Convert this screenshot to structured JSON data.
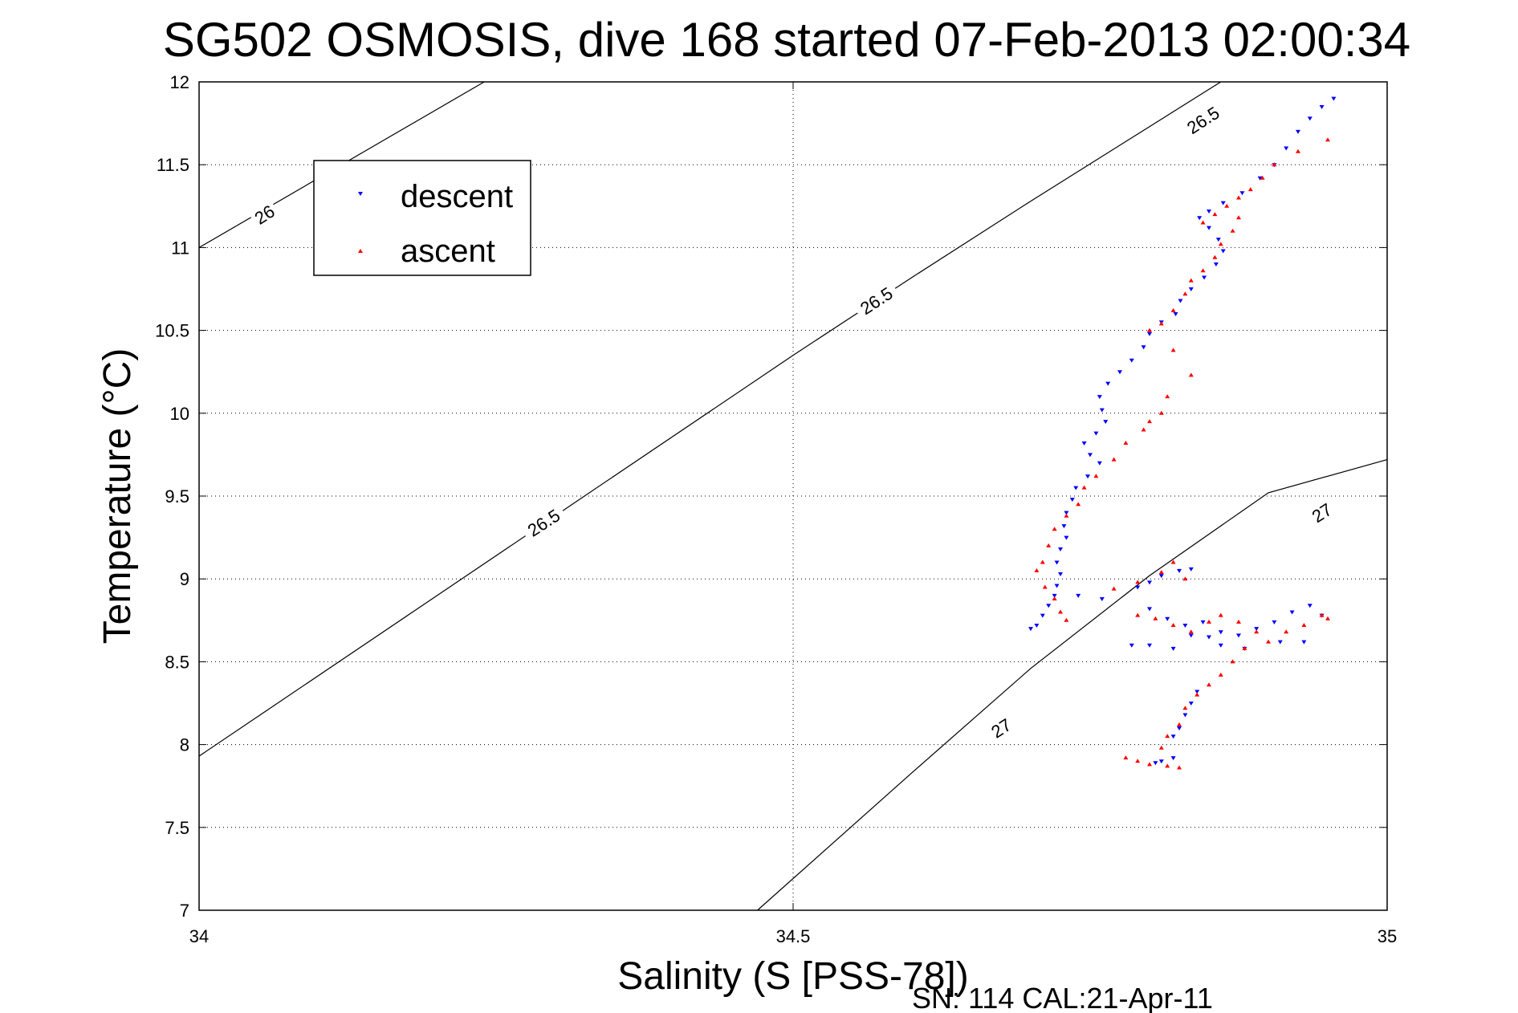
{
  "chart_data": {
    "type": "scatter",
    "title": "SG502 OSMOSIS, dive 168 started 07-Feb-2013 02:00:34",
    "xlabel": "Salinity (S [PSS-78])",
    "ylabel": "Temperature (°C)",
    "xlim": [
      34,
      35
    ],
    "ylim": [
      7,
      12
    ],
    "xticks": [
      "34",
      "34.5",
      "35"
    ],
    "yticks": [
      "7",
      "7.5",
      "8",
      "8.5",
      "9",
      "9.5",
      "10",
      "10.5",
      "11",
      "11.5",
      "12"
    ],
    "grid": true,
    "legend_position": "top-left",
    "footer": "SN: 114  CAL:21-Apr-11",
    "series": [
      {
        "name": "descent",
        "color": "#0000ff",
        "marker": "triangle-down",
        "points": [
          [
            34.955,
            11.9
          ],
          [
            34.945,
            11.85
          ],
          [
            34.935,
            11.78
          ],
          [
            34.925,
            11.7
          ],
          [
            34.915,
            11.6
          ],
          [
            34.905,
            11.5
          ],
          [
            34.893,
            11.42
          ],
          [
            34.878,
            11.33
          ],
          [
            34.862,
            11.27
          ],
          [
            34.85,
            11.22
          ],
          [
            34.842,
            11.18
          ],
          [
            34.85,
            11.12
          ],
          [
            34.858,
            11.05
          ],
          [
            34.862,
            10.98
          ],
          [
            34.856,
            10.9
          ],
          [
            34.846,
            10.82
          ],
          [
            34.835,
            10.75
          ],
          [
            34.826,
            10.68
          ],
          [
            34.822,
            10.6
          ],
          [
            34.81,
            10.55
          ],
          [
            34.8,
            10.48
          ],
          [
            34.795,
            10.4
          ],
          [
            34.785,
            10.32
          ],
          [
            34.775,
            10.25
          ],
          [
            34.765,
            10.18
          ],
          [
            34.758,
            10.1
          ],
          [
            34.76,
            10.02
          ],
          [
            34.763,
            9.95
          ],
          [
            34.755,
            9.88
          ],
          [
            34.745,
            9.82
          ],
          [
            34.75,
            9.75
          ],
          [
            34.758,
            9.7
          ],
          [
            34.748,
            9.62
          ],
          [
            34.738,
            9.55
          ],
          [
            34.735,
            9.48
          ],
          [
            34.73,
            9.4
          ],
          [
            34.728,
            9.32
          ],
          [
            34.73,
            9.25
          ],
          [
            34.725,
            9.18
          ],
          [
            34.722,
            9.1
          ],
          [
            34.725,
            9.03
          ],
          [
            34.722,
            8.96
          ],
          [
            34.72,
            8.9
          ],
          [
            34.715,
            8.84
          ],
          [
            34.71,
            8.78
          ],
          [
            34.705,
            8.72
          ],
          [
            34.7,
            8.7
          ],
          [
            34.74,
            8.9
          ],
          [
            34.76,
            8.88
          ],
          [
            34.79,
            8.95
          ],
          [
            34.8,
            8.98
          ],
          [
            34.81,
            9.02
          ],
          [
            34.825,
            9.05
          ],
          [
            34.835,
            9.06
          ],
          [
            34.8,
            8.82
          ],
          [
            34.815,
            8.76
          ],
          [
            34.83,
            8.72
          ],
          [
            34.845,
            8.74
          ],
          [
            34.86,
            8.68
          ],
          [
            34.875,
            8.66
          ],
          [
            34.89,
            8.7
          ],
          [
            34.905,
            8.74
          ],
          [
            34.92,
            8.8
          ],
          [
            34.935,
            8.84
          ],
          [
            34.945,
            8.78
          ],
          [
            34.93,
            8.62
          ],
          [
            34.91,
            8.62
          ],
          [
            34.88,
            8.58
          ],
          [
            34.86,
            8.6
          ],
          [
            34.85,
            8.65
          ],
          [
            34.835,
            8.66
          ],
          [
            34.82,
            8.58
          ],
          [
            34.8,
            8.6
          ],
          [
            34.785,
            8.6
          ],
          [
            34.84,
            8.32
          ],
          [
            34.835,
            8.25
          ],
          [
            34.83,
            8.18
          ],
          [
            34.825,
            8.1
          ],
          [
            34.82,
            8.05
          ],
          [
            34.82,
            7.92
          ],
          [
            34.81,
            7.9
          ],
          [
            34.805,
            7.89
          ]
        ]
      },
      {
        "name": "ascent",
        "color": "#ff0000",
        "marker": "triangle-up",
        "points": [
          [
            34.95,
            11.65
          ],
          [
            34.925,
            11.58
          ],
          [
            34.905,
            11.5
          ],
          [
            34.895,
            11.42
          ],
          [
            34.885,
            11.35
          ],
          [
            34.875,
            11.3
          ],
          [
            34.865,
            11.25
          ],
          [
            34.855,
            11.2
          ],
          [
            34.845,
            11.15
          ],
          [
            34.875,
            11.18
          ],
          [
            34.87,
            11.1
          ],
          [
            34.86,
            11.02
          ],
          [
            34.855,
            10.94
          ],
          [
            34.845,
            10.86
          ],
          [
            34.835,
            10.8
          ],
          [
            34.83,
            10.72
          ],
          [
            34.82,
            10.62
          ],
          [
            34.81,
            10.54
          ],
          [
            34.8,
            10.5
          ],
          [
            34.82,
            10.38
          ],
          [
            34.835,
            10.23
          ],
          [
            34.815,
            10.1
          ],
          [
            34.81,
            10.0
          ],
          [
            34.8,
            9.95
          ],
          [
            34.795,
            9.9
          ],
          [
            34.78,
            9.82
          ],
          [
            34.77,
            9.72
          ],
          [
            34.755,
            9.62
          ],
          [
            34.745,
            9.55
          ],
          [
            34.74,
            9.45
          ],
          [
            34.73,
            9.38
          ],
          [
            34.72,
            9.3
          ],
          [
            34.715,
            9.2
          ],
          [
            34.71,
            9.1
          ],
          [
            34.705,
            9.05
          ],
          [
            34.712,
            8.95
          ],
          [
            34.72,
            8.88
          ],
          [
            34.725,
            8.8
          ],
          [
            34.73,
            8.75
          ],
          [
            34.77,
            8.94
          ],
          [
            34.79,
            8.98
          ],
          [
            34.81,
            9.04
          ],
          [
            34.82,
            9.1
          ],
          [
            34.83,
            9.0
          ],
          [
            34.79,
            8.78
          ],
          [
            34.805,
            8.76
          ],
          [
            34.82,
            8.72
          ],
          [
            34.835,
            8.68
          ],
          [
            34.85,
            8.74
          ],
          [
            34.86,
            8.78
          ],
          [
            34.875,
            8.74
          ],
          [
            34.89,
            8.68
          ],
          [
            34.9,
            8.62
          ],
          [
            34.915,
            8.68
          ],
          [
            34.93,
            8.72
          ],
          [
            34.945,
            8.78
          ],
          [
            34.95,
            8.76
          ],
          [
            34.88,
            8.58
          ],
          [
            34.87,
            8.5
          ],
          [
            34.86,
            8.42
          ],
          [
            34.85,
            8.36
          ],
          [
            34.84,
            8.3
          ],
          [
            34.83,
            8.22
          ],
          [
            34.825,
            8.12
          ],
          [
            34.815,
            8.05
          ],
          [
            34.81,
            7.98
          ],
          [
            34.79,
            7.9
          ],
          [
            34.8,
            7.88
          ],
          [
            34.815,
            7.87
          ],
          [
            34.825,
            7.86
          ],
          [
            34.78,
            7.92
          ]
        ]
      }
    ],
    "contours": [
      {
        "label": "26",
        "points": [
          [
            34.0,
            11.0
          ],
          [
            34.24,
            12.0
          ]
        ],
        "label_at": [
          34.055,
          11.2
        ]
      },
      {
        "label": "26.5",
        "points": [
          [
            34.0,
            7.93
          ],
          [
            34.5,
            10.35
          ],
          [
            34.6,
            10.82
          ],
          [
            34.7,
            11.28
          ],
          [
            34.8,
            11.73
          ],
          [
            34.86,
            12.0
          ]
        ],
        "label_at": [
          34.57,
          10.68
        ]
      },
      {
        "label": "26.5",
        "label_at": [
          34.29,
          9.34
        ]
      },
      {
        "label": "26.5",
        "label_at": [
          34.845,
          11.77
        ]
      },
      {
        "label": "27",
        "points": [
          [
            34.47,
            7.0
          ],
          [
            34.6,
            7.83
          ],
          [
            34.7,
            8.46
          ],
          [
            34.8,
            9.02
          ],
          [
            34.9,
            9.52
          ],
          [
            35.0,
            9.72
          ]
        ],
        "label_at": [
          34.675,
          8.1
        ]
      },
      {
        "label": "27",
        "label_at": [
          34.945,
          9.4
        ]
      }
    ]
  },
  "legend": {
    "descent_label": "descent",
    "ascent_label": "ascent"
  }
}
